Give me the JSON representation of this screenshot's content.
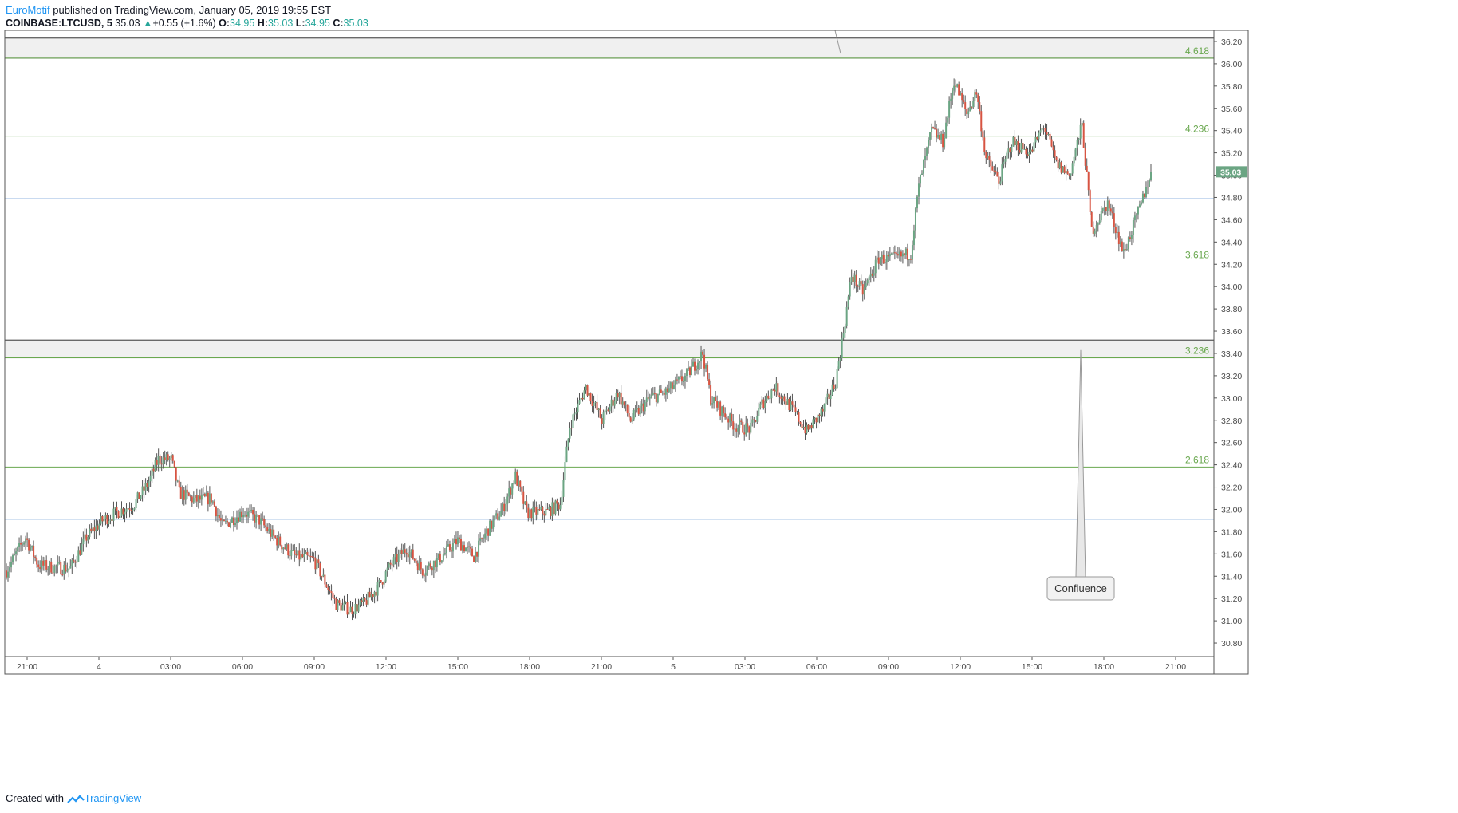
{
  "header": {
    "author": "EuroMotif",
    "published_text": "published on TradingView.com, January 05, 2019 19:55 EST",
    "symbol": "COINBASE:LTCUSD, 5",
    "last": "35.03",
    "change": "+0.55 (+1.6%)",
    "open_label": "O:",
    "open_value": "34.95",
    "high_label": "H:",
    "high_value": "35.03",
    "low_label": "L:",
    "low_value": "34.95",
    "close_label": "C:",
    "close_value": "35.03"
  },
  "footer": {
    "created_with": "Created with",
    "brand": "TradingView"
  },
  "colors": {
    "up": "#6ba583",
    "down": "#d75442",
    "fib_line": "#6aa84f",
    "fib_label": "#6aa84f",
    "blue_line": "#a9c4e6",
    "zone_fill": "#f0f0f0",
    "axis_text": "#4a4a4a",
    "price_tag_bg": "#6ba583"
  },
  "chart_data": {
    "type": "candlestick",
    "symbol": "COINBASE:LTCUSD",
    "interval": "5",
    "ylim": [
      30.7,
      36.3
    ],
    "y_ticks": [
      "30.80",
      "31.00",
      "31.20",
      "31.40",
      "31.60",
      "31.80",
      "32.00",
      "32.20",
      "32.40",
      "32.60",
      "32.80",
      "33.00",
      "33.20",
      "33.40",
      "33.60",
      "33.80",
      "34.00",
      "34.20",
      "34.40",
      "34.60",
      "34.80",
      "35.00",
      "35.20",
      "35.40",
      "35.60",
      "35.80",
      "36.00",
      "36.20"
    ],
    "x_ticks": [
      "21:00",
      "4",
      "03:00",
      "06:00",
      "09:00",
      "12:00",
      "15:00",
      "18:00",
      "21:00",
      "5",
      "03:00",
      "06:00",
      "09:00",
      "12:00",
      "15:00",
      "18:00",
      "21:00"
    ],
    "current_price": "35.03",
    "fib_levels": [
      {
        "label": "4.618",
        "price": 36.05
      },
      {
        "label": "4.236",
        "price": 35.35
      },
      {
        "label": "3.618",
        "price": 34.22
      },
      {
        "label": "3.236",
        "price": 33.36
      },
      {
        "label": "2.618",
        "price": 32.38
      }
    ],
    "horizontal_lines": [
      34.79,
      31.91
    ],
    "zones": [
      {
        "top": 36.23,
        "bottom": 36.05
      },
      {
        "top": 33.52,
        "bottom": 33.36
      }
    ],
    "annotation": {
      "text": "Confluence",
      "pointer_price": 33.43
    },
    "path": [
      [
        0,
        31.45
      ],
      [
        12,
        31.75
      ],
      [
        20,
        31.5
      ],
      [
        30,
        31.48
      ],
      [
        40,
        31.47
      ],
      [
        50,
        31.75
      ],
      [
        60,
        31.9
      ],
      [
        70,
        31.98
      ],
      [
        80,
        32.05
      ],
      [
        88,
        32.22
      ],
      [
        95,
        32.45
      ],
      [
        103,
        32.45
      ],
      [
        108,
        32.15
      ],
      [
        118,
        32.08
      ],
      [
        128,
        32.1
      ],
      [
        135,
        31.85
      ],
      [
        148,
        31.98
      ],
      [
        158,
        31.9
      ],
      [
        167,
        31.75
      ],
      [
        180,
        31.58
      ],
      [
        192,
        31.55
      ],
      [
        206,
        31.15
      ],
      [
        215,
        31.1
      ],
      [
        223,
        31.15
      ],
      [
        232,
        31.3
      ],
      [
        240,
        31.5
      ],
      [
        250,
        31.65
      ],
      [
        260,
        31.45
      ],
      [
        270,
        31.55
      ],
      [
        282,
        31.72
      ],
      [
        292,
        31.58
      ],
      [
        300,
        31.8
      ],
      [
        310,
        32.0
      ],
      [
        318,
        32.3
      ],
      [
        325,
        31.97
      ],
      [
        338,
        31.98
      ],
      [
        346,
        32.05
      ],
      [
        352,
        32.75
      ],
      [
        362,
        33.1
      ],
      [
        372,
        32.8
      ],
      [
        382,
        33.05
      ],
      [
        390,
        32.8
      ],
      [
        402,
        33.0
      ],
      [
        412,
        33.05
      ],
      [
        425,
        33.2
      ],
      [
        435,
        33.4
      ],
      [
        440,
        33.0
      ],
      [
        455,
        32.75
      ],
      [
        465,
        32.72
      ],
      [
        472,
        32.95
      ],
      [
        480,
        33.1
      ],
      [
        490,
        32.92
      ],
      [
        500,
        32.7
      ],
      [
        510,
        32.88
      ],
      [
        518,
        33.15
      ],
      [
        522,
        33.5
      ],
      [
        528,
        34.1
      ],
      [
        535,
        33.95
      ],
      [
        545,
        34.25
      ],
      [
        555,
        34.25
      ],
      [
        565,
        34.3
      ],
      [
        570,
        34.9
      ],
      [
        578,
        35.4
      ],
      [
        585,
        35.3
      ],
      [
        592,
        35.85
      ],
      [
        600,
        35.55
      ],
      [
        606,
        35.75
      ],
      [
        612,
        35.15
      ],
      [
        620,
        34.95
      ],
      [
        628,
        35.3
      ],
      [
        640,
        35.2
      ],
      [
        648,
        35.45
      ],
      [
        656,
        35.1
      ],
      [
        664,
        35.0
      ],
      [
        672,
        35.45
      ],
      [
        678,
        34.5
      ],
      [
        688,
        34.75
      ],
      [
        698,
        34.3
      ],
      [
        708,
        34.7
      ],
      [
        715,
        35.03
      ]
    ]
  }
}
